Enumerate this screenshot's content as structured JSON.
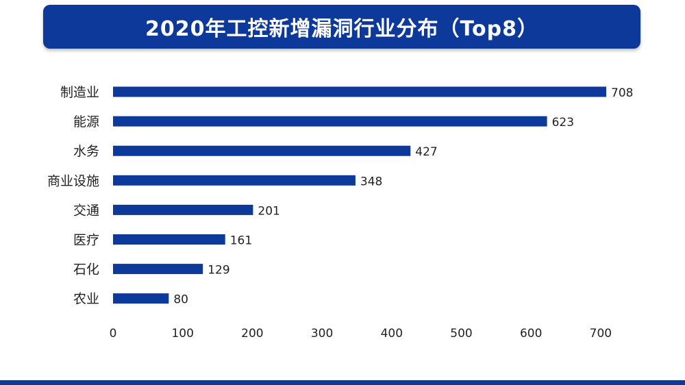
{
  "chart_data": {
    "type": "bar",
    "orientation": "horizontal",
    "title": "2020年工控新增漏洞行业分布（Top8）",
    "categories": [
      "制造业",
      "能源",
      "水务",
      "商业设施",
      "交通",
      "医疗",
      "石化",
      "农业"
    ],
    "values": [
      708,
      623,
      427,
      348,
      201,
      161,
      129,
      80
    ],
    "xlim": [
      0,
      700
    ],
    "xticks": [
      0,
      100,
      200,
      300,
      400,
      500,
      600,
      700
    ],
    "bar_color": "#0d3a9a",
    "grid": false,
    "data_labels": true
  },
  "colors": {
    "accent": "#0d3a9a",
    "text": "#222222"
  }
}
